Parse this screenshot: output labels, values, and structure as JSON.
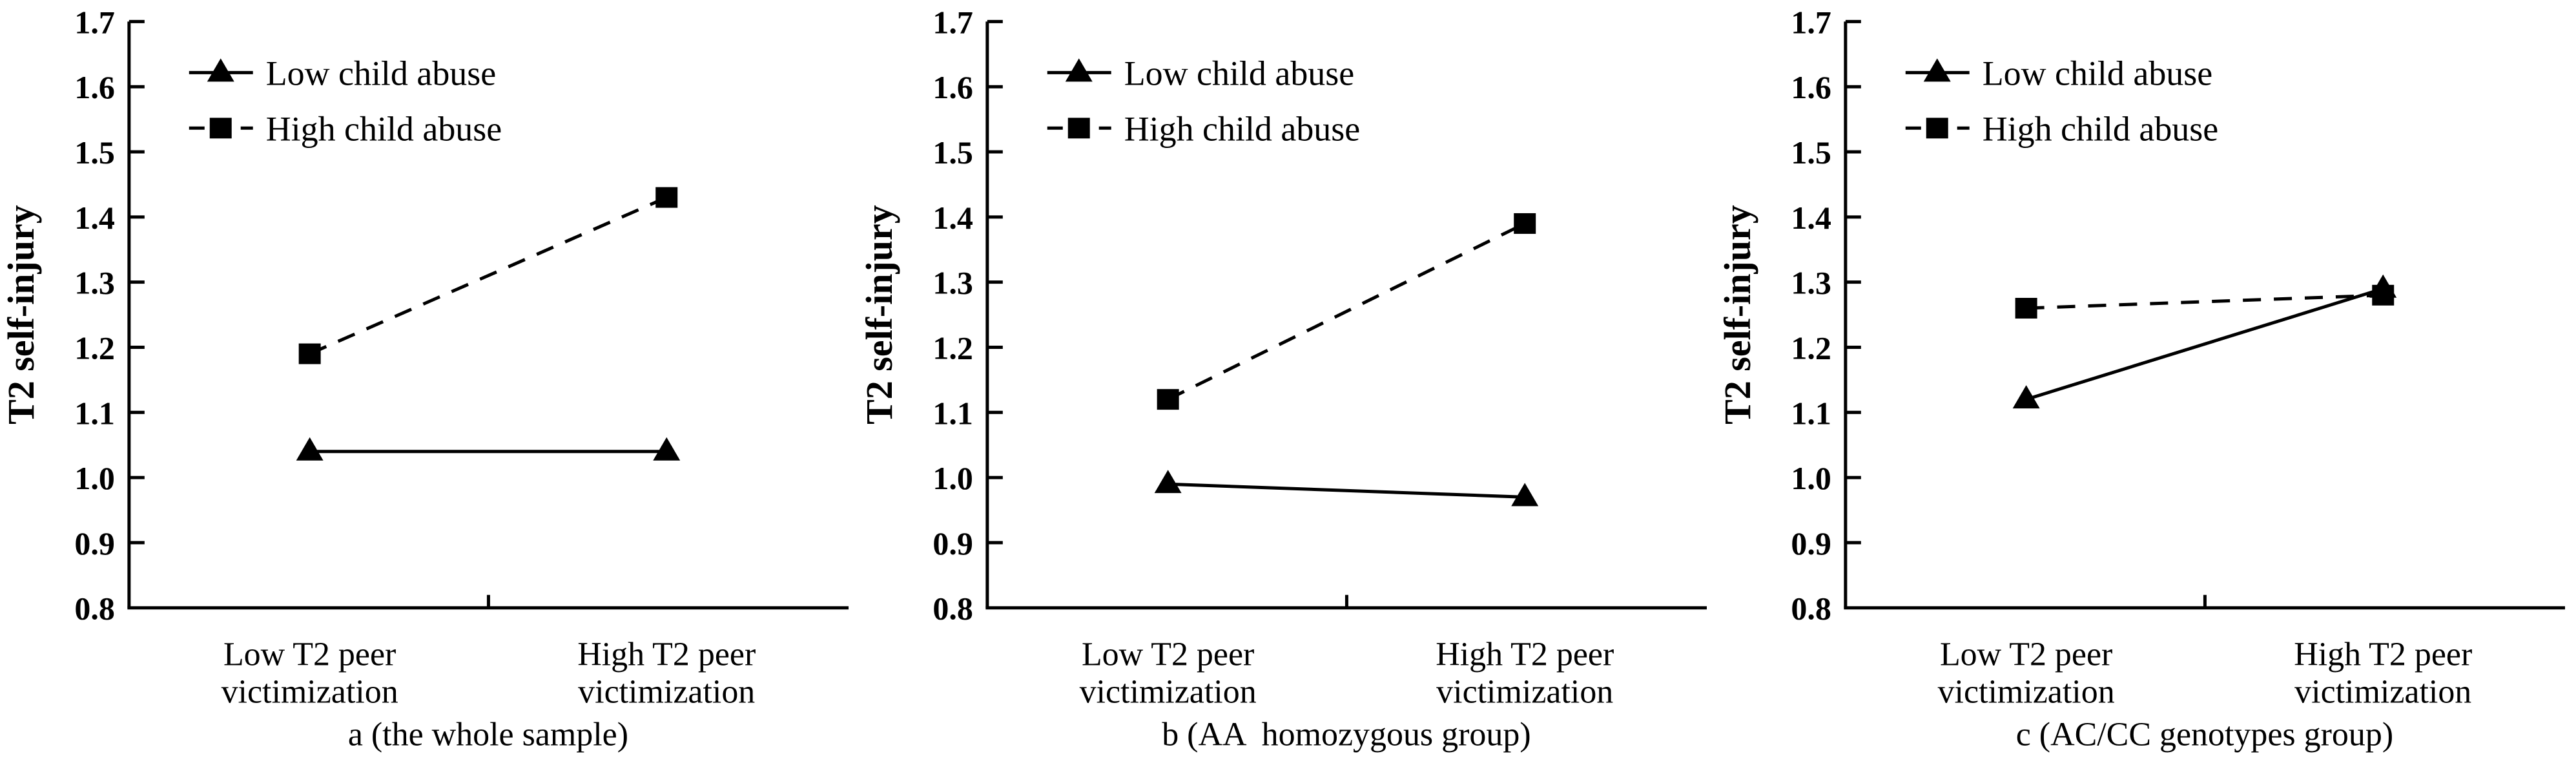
{
  "figure": {
    "background": "#ffffff",
    "ink": "#000000",
    "marker_icons": [
      "filled-triangle-icon",
      "filled-square-icon"
    ]
  },
  "chart_data": [
    {
      "type": "line",
      "title": "a (the whole sample)",
      "ylabel": "T2 self-injury",
      "xlabel": "",
      "ylim": [
        0.8,
        1.7
      ],
      "ytick_step": 0.1,
      "yticks": [
        "1.7",
        "1.6",
        "1.5",
        "1.4",
        "1.3",
        "1.2",
        "1.1",
        "1.0",
        "0.9",
        "0.8"
      ],
      "grid": false,
      "legend_position": "top-left",
      "categories": [
        [
          "Low T2 peer",
          "victimization"
        ],
        [
          "High T2 peer",
          "victimization"
        ]
      ],
      "series": [
        {
          "name": "Low child abuse",
          "marker": "triangle",
          "line": "solid",
          "values": [
            1.04,
            1.04
          ]
        },
        {
          "name": "High child abuse",
          "marker": "square",
          "line": "dashed",
          "values": [
            1.19,
            1.43
          ]
        }
      ]
    },
    {
      "type": "line",
      "title": "b (AA  homozygous group)",
      "ylabel": "T2 self-injury",
      "xlabel": "",
      "ylim": [
        0.8,
        1.7
      ],
      "ytick_step": 0.1,
      "yticks": [
        "1.7",
        "1.6",
        "1.5",
        "1.4",
        "1.3",
        "1.2",
        "1.1",
        "1.0",
        "0.9",
        "0.8"
      ],
      "grid": false,
      "legend_position": "top-left",
      "categories": [
        [
          "Low T2 peer",
          "victimization"
        ],
        [
          "High T2 peer",
          "victimization"
        ]
      ],
      "series": [
        {
          "name": "Low child abuse",
          "marker": "triangle",
          "line": "solid",
          "values": [
            0.99,
            0.97
          ]
        },
        {
          "name": "High child abuse",
          "marker": "square",
          "line": "dashed",
          "values": [
            1.12,
            1.39
          ]
        }
      ]
    },
    {
      "type": "line",
      "title": "c (AC/CC genotypes group)",
      "ylabel": "T2 self-injury",
      "xlabel": "",
      "ylim": [
        0.8,
        1.7
      ],
      "ytick_step": 0.1,
      "yticks": [
        "1.7",
        "1.6",
        "1.5",
        "1.4",
        "1.3",
        "1.2",
        "1.1",
        "1.0",
        "0.9",
        "0.8"
      ],
      "grid": false,
      "legend_position": "top-left",
      "categories": [
        [
          "Low T2 peer",
          "victimization"
        ],
        [
          "High T2 peer",
          "victimization"
        ]
      ],
      "series": [
        {
          "name": "Low child abuse",
          "marker": "triangle",
          "line": "solid",
          "values": [
            1.12,
            1.29
          ]
        },
        {
          "name": "High child abuse",
          "marker": "square",
          "line": "dashed",
          "values": [
            1.26,
            1.28
          ]
        }
      ]
    }
  ]
}
